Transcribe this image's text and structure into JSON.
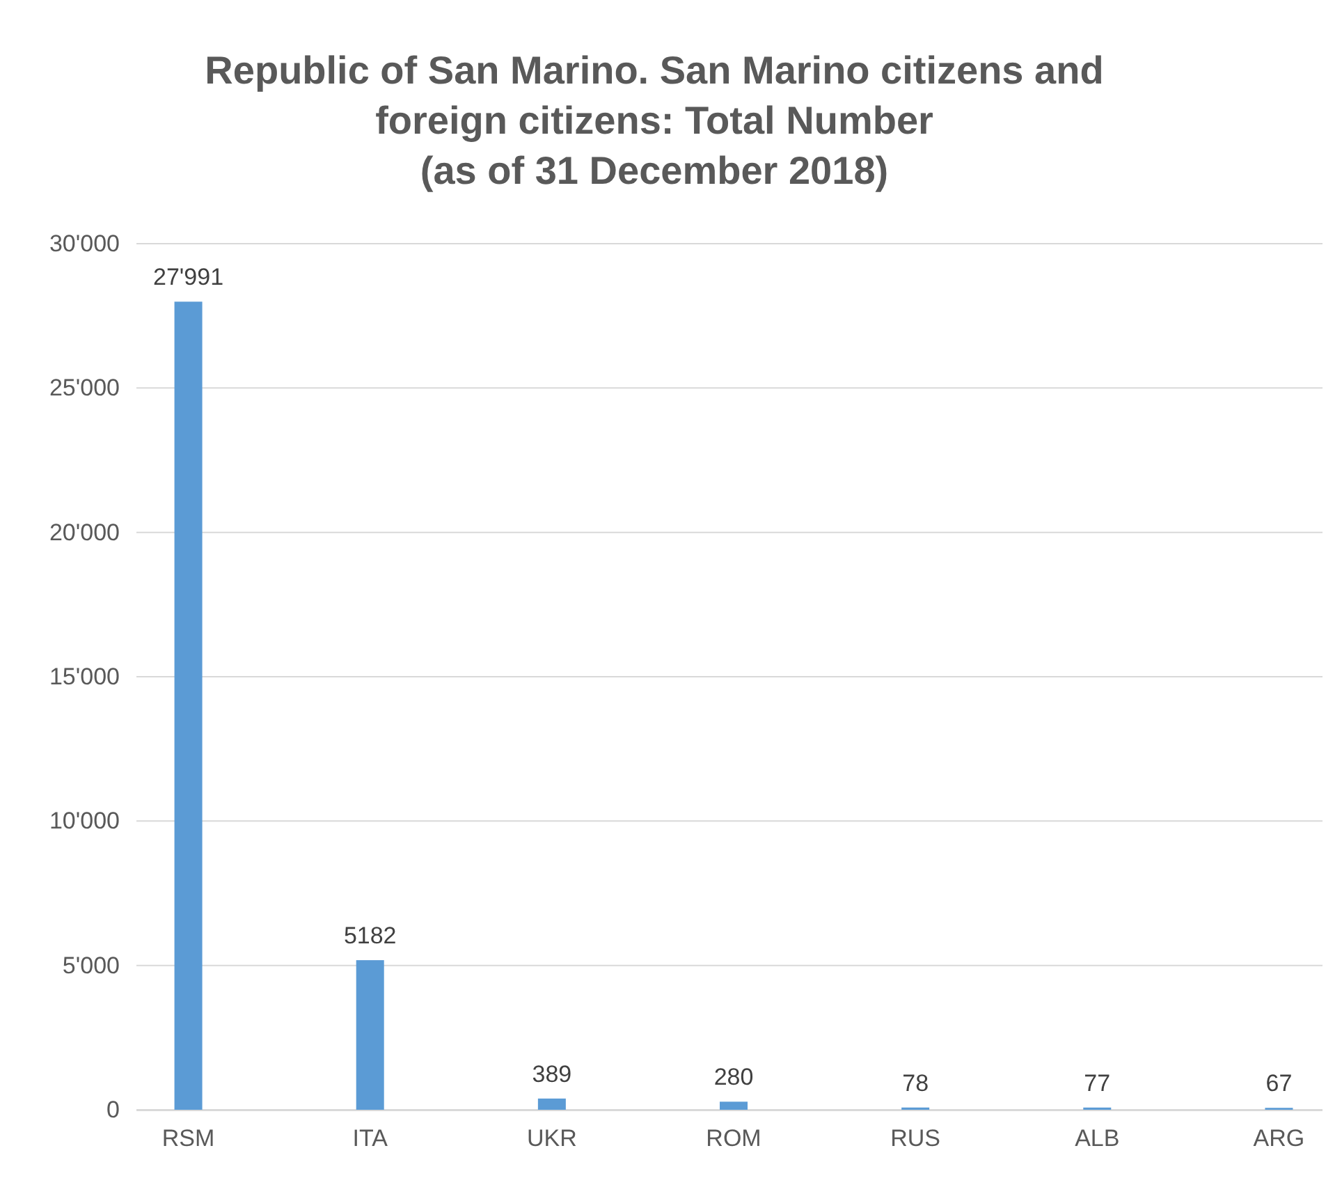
{
  "chart_data": {
    "type": "bar",
    "title": "Republic of San Marino. San Marino citizens and foreign citizens: Total Number (as of 31 December 2018)",
    "categories": [
      "RSM",
      "ITA",
      "UKR",
      "ROM",
      "RUS",
      "ALB",
      "ARG"
    ],
    "values": [
      27991,
      5182,
      389,
      280,
      78,
      77,
      67
    ],
    "value_labels": [
      "27'991",
      "5182",
      "389",
      "280",
      "78",
      "77",
      "67"
    ],
    "color": "#5b9bd5",
    "ylim": [
      0,
      30000
    ],
    "yticks": [
      {
        "value": 0,
        "label": "0"
      },
      {
        "value": 5000,
        "label": "5'000"
      },
      {
        "value": 10000,
        "label": "10'000"
      },
      {
        "value": 15000,
        "label": "15'000"
      },
      {
        "value": 20000,
        "label": "20'000"
      },
      {
        "value": 25000,
        "label": "25'000"
      },
      {
        "value": 30000,
        "label": "30'000"
      }
    ],
    "grid": "y"
  }
}
